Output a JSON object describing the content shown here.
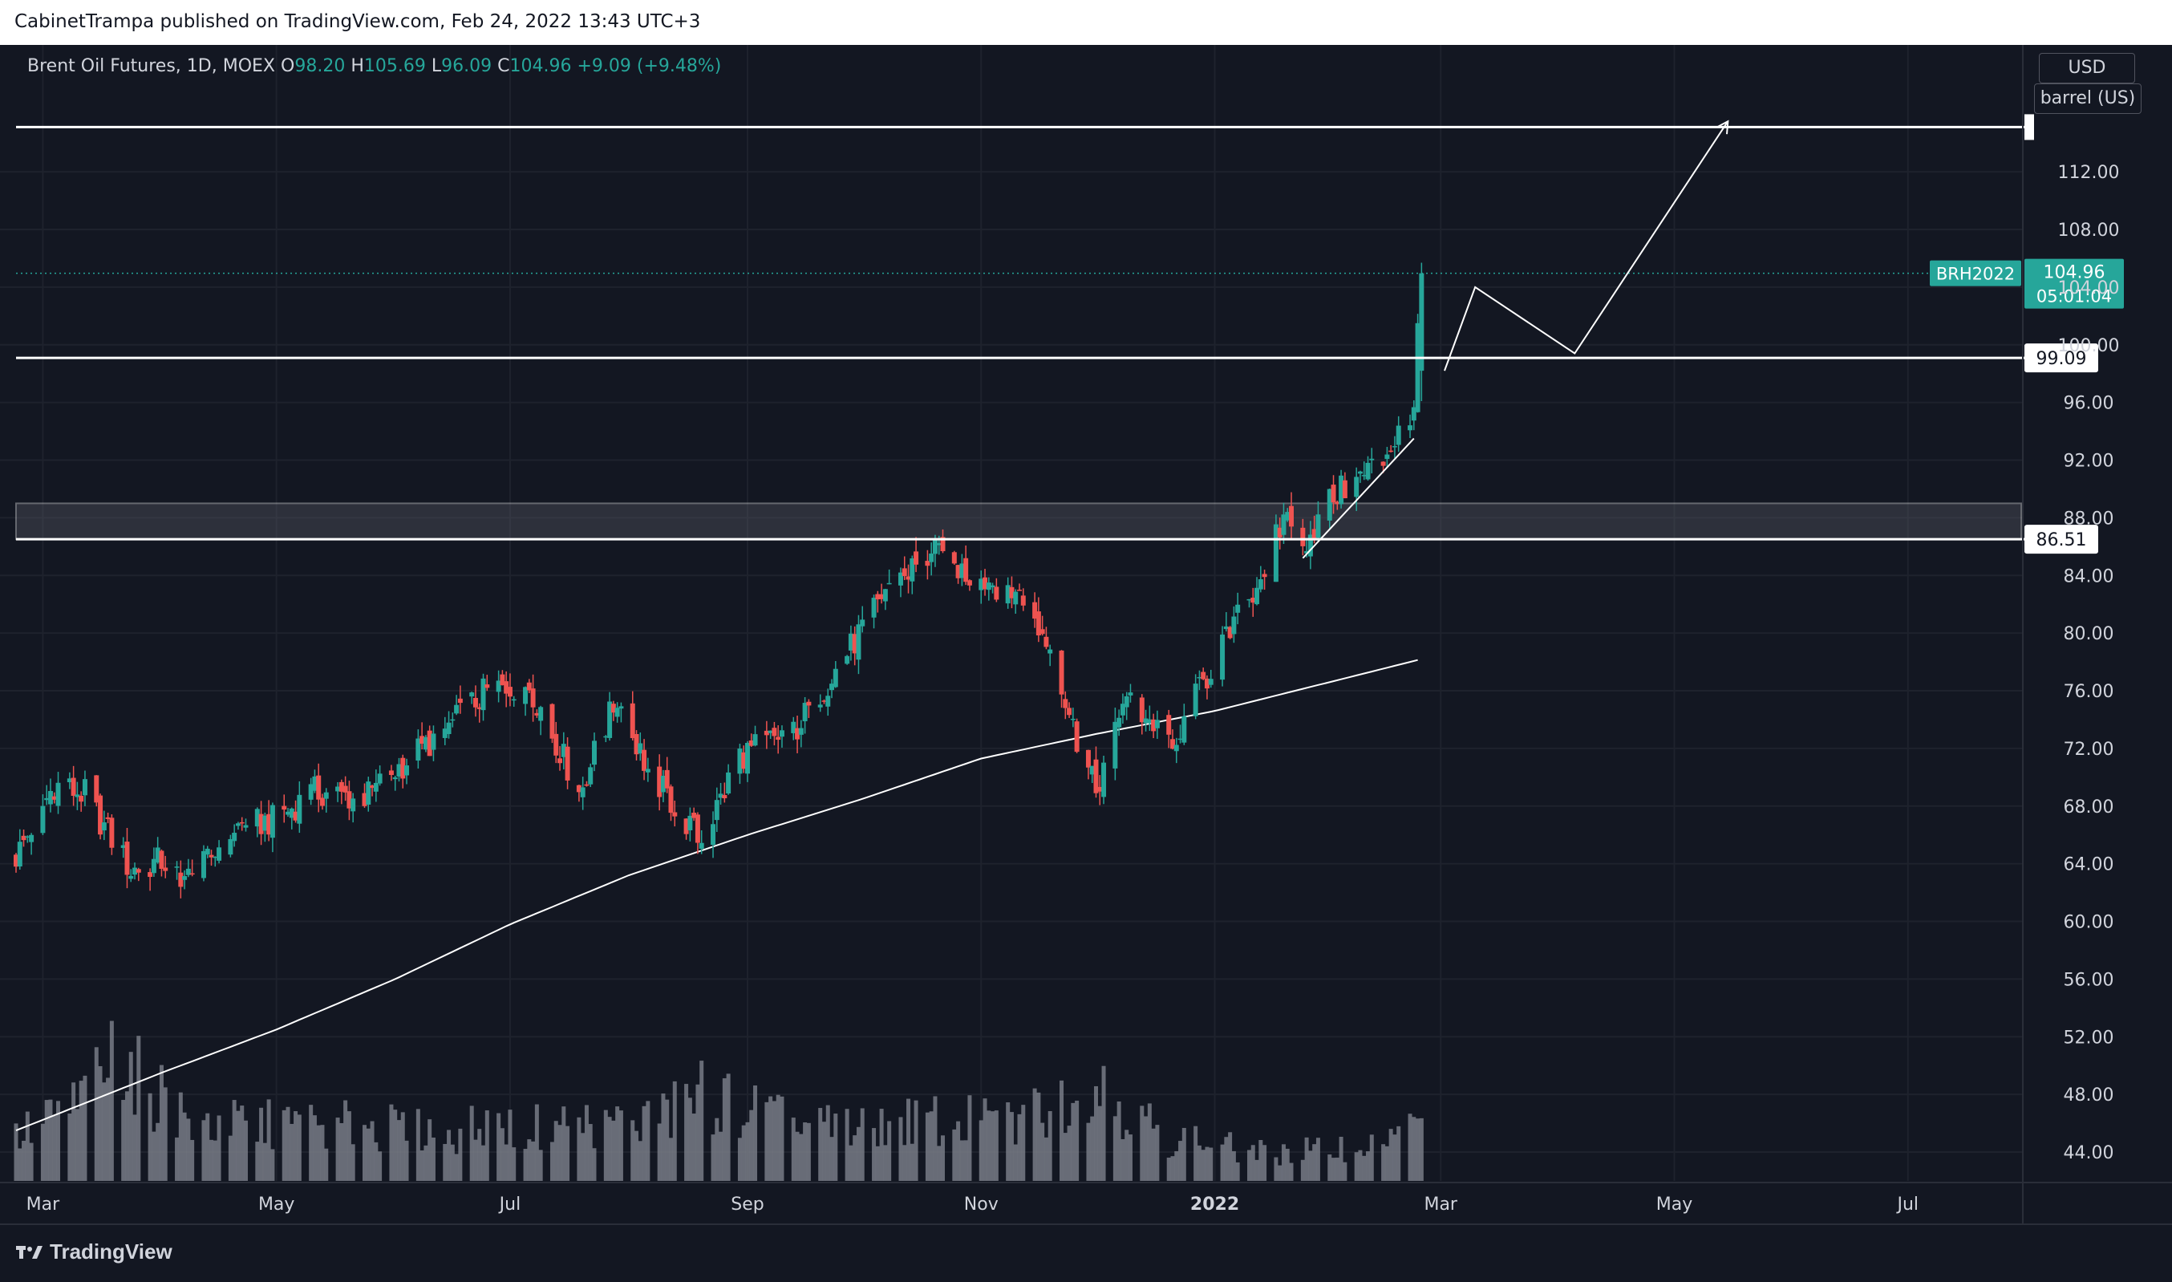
{
  "header": {
    "publisher_line": "CabinetTrampa published on TradingView.com, Feb 24, 2022 13:43 UTC+3"
  },
  "legend": {
    "symbol_line": "Brent Oil Futures, 1D, MOEX",
    "open_key": "O",
    "open": "98.20",
    "high_key": "H",
    "high": "105.69",
    "low_key": "L",
    "low": "96.09",
    "close_key": "C",
    "close": "104.96",
    "change": "+9.09 (+9.48%)"
  },
  "scale": {
    "currency_button": "USD",
    "unit_button": "barrel (US)"
  },
  "brand": {
    "name": "TradingView"
  },
  "colors": {
    "background": "#131722",
    "up": "#26a69a",
    "down": "#ef5350",
    "volume": "#787b86",
    "drawing": "#ffffff",
    "grid": "#1e222d",
    "axis_text": "#d1d4dc"
  },
  "chart_data": {
    "type": "candlestick",
    "symbol": "BRH2022",
    "timeframe": "1D",
    "x_start_date": "2021-02-22",
    "x_end_date": "2022-07-31",
    "last_bar_date": "2022-02-24",
    "x_ticks": [
      {
        "date": "2021-03-01",
        "label": "Mar",
        "bold": false
      },
      {
        "date": "2021-05-01",
        "label": "May",
        "bold": false
      },
      {
        "date": "2021-07-01",
        "label": "Jul",
        "bold": false
      },
      {
        "date": "2021-09-01",
        "label": "Sep",
        "bold": false
      },
      {
        "date": "2021-11-01",
        "label": "Nov",
        "bold": false
      },
      {
        "date": "2022-01-01",
        "label": "2022",
        "bold": true
      },
      {
        "date": "2022-03-01",
        "label": "Mar",
        "bold": false
      },
      {
        "date": "2022-05-01",
        "label": "May",
        "bold": false
      },
      {
        "date": "2022-07-01",
        "label": "Jul",
        "bold": false
      }
    ],
    "y_range": [
      42.0,
      120.8
    ],
    "y_ticks": [
      44,
      48,
      52,
      56,
      60,
      64,
      68,
      72,
      76,
      80,
      84,
      88,
      92,
      96,
      100,
      104,
      108,
      112
    ],
    "y_tick_labels": [
      "44.00",
      "48.00",
      "52.00",
      "56.00",
      "60.00",
      "64.00",
      "68.00",
      "72.00",
      "76.00",
      "80.00",
      "84.00",
      "88.00",
      "92.00",
      "96.00",
      "100.00",
      "104.00",
      "108.00",
      "112.00"
    ],
    "price_path": [
      [
        "2021-02-22",
        64.5
      ],
      [
        "2021-03-04",
        69.5
      ],
      [
        "2021-03-12",
        68.8
      ],
      [
        "2021-03-24",
        63.5
      ],
      [
        "2021-04-01",
        64.2
      ],
      [
        "2021-04-09",
        62.8
      ],
      [
        "2021-04-20",
        66.5
      ],
      [
        "2021-04-30",
        67.0
      ],
      [
        "2021-05-11",
        69.0
      ],
      [
        "2021-05-24",
        68.5
      ],
      [
        "2021-06-01",
        70.5
      ],
      [
        "2021-06-15",
        73.5
      ],
      [
        "2021-06-25",
        76.0
      ],
      [
        "2021-07-06",
        76.5
      ],
      [
        "2021-07-19",
        69.0
      ],
      [
        "2021-07-29",
        75.5
      ],
      [
        "2021-08-06",
        70.5
      ],
      [
        "2021-08-20",
        65.5
      ],
      [
        "2021-08-30",
        71.5
      ],
      [
        "2021-09-14",
        73.5
      ],
      [
        "2021-09-28",
        79.0
      ],
      [
        "2021-10-08",
        83.5
      ],
      [
        "2021-10-20",
        85.5
      ],
      [
        "2021-10-29",
        84.0
      ],
      [
        "2021-11-10",
        83.0
      ],
      [
        "2021-11-19",
        79.0
      ],
      [
        "2021-11-26",
        72.5
      ],
      [
        "2021-12-01",
        69.0
      ],
      [
        "2021-12-08",
        75.5
      ],
      [
        "2021-12-17",
        73.5
      ],
      [
        "2021-12-21",
        71.5
      ],
      [
        "2021-12-27",
        75.5
      ],
      [
        "2022-01-05",
        80.0
      ],
      [
        "2022-01-14",
        84.5
      ],
      [
        "2022-01-20",
        88.5
      ],
      [
        "2022-01-25",
        86.5
      ],
      [
        "2022-02-01",
        89.5
      ],
      [
        "2022-02-09",
        91.0
      ],
      [
        "2022-02-15",
        92.5
      ],
      [
        "2022-02-22",
        95.9
      ],
      [
        "2022-02-24",
        104.96
      ]
    ],
    "ma_200": [
      [
        "2021-02-22",
        45.5
      ],
      [
        "2021-04-01",
        49.5
      ],
      [
        "2021-05-01",
        52.5
      ],
      [
        "2021-06-01",
        56.0
      ],
      [
        "2021-07-01",
        59.8
      ],
      [
        "2021-08-01",
        63.2
      ],
      [
        "2021-09-01",
        66.0
      ],
      [
        "2021-10-01",
        68.5
      ],
      [
        "2021-11-01",
        71.3
      ],
      [
        "2021-12-01",
        73.0
      ],
      [
        "2022-01-01",
        74.6
      ],
      [
        "2022-02-24",
        78.2
      ]
    ],
    "volume_profile": [
      [
        "2021-02-22",
        0.35
      ],
      [
        "2021-03-10",
        0.6
      ],
      [
        "2021-03-20",
        1.0
      ],
      [
        "2021-04-10",
        0.45
      ],
      [
        "2021-05-15",
        0.45
      ],
      [
        "2021-06-15",
        0.4
      ],
      [
        "2021-07-10",
        0.45
      ],
      [
        "2021-08-10",
        0.5
      ],
      [
        "2021-08-20",
        0.7
      ],
      [
        "2021-09-15",
        0.42
      ],
      [
        "2021-10-15",
        0.5
      ],
      [
        "2021-11-10",
        0.45
      ],
      [
        "2021-11-29",
        0.82
      ],
      [
        "2021-12-20",
        0.35
      ],
      [
        "2022-01-15",
        0.22
      ],
      [
        "2022-02-10",
        0.3
      ],
      [
        "2022-02-20",
        0.45
      ]
    ],
    "volume_max_height_units": 11.5,
    "last_price": {
      "value": 104.96,
      "label": "104.96",
      "symbol_tag": "BRH2022",
      "countdown": "05:01:04"
    },
    "levels": [
      {
        "value": 115.1,
        "label": ""
      },
      {
        "value": 99.09,
        "label": "99.09"
      },
      {
        "value": 86.51,
        "label": "86.51"
      }
    ],
    "zone": {
      "top": 89.0,
      "bottom": 86.51
    },
    "trendline": [
      [
        "2022-01-24",
        85.2
      ],
      [
        "2022-02-22",
        93.5
      ]
    ],
    "projection": [
      [
        "2022-03-02",
        98.2
      ],
      [
        "2022-03-10",
        104.0
      ],
      [
        "2022-04-05",
        99.4
      ],
      [
        "2022-05-15",
        115.5
      ]
    ]
  }
}
